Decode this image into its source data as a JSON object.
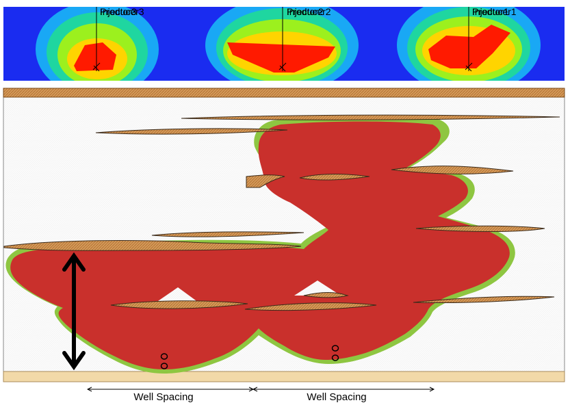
{
  "heatmap": {
    "background_color": "#1a2cf0",
    "wells": [
      {
        "label_top": "Injector3",
        "label_overlap": "Producer3"
      },
      {
        "label_top": "Injector2",
        "label_overlap": "Producer2"
      },
      {
        "label_top": "Injector1",
        "label_overlap": "Producer1"
      }
    ]
  },
  "cross_section": {
    "steam_chamber_color": "#c9302c",
    "chamber_halo_color": "#8ec641",
    "shale_color": "#d18a45",
    "cap_rock_color": "#c98c46",
    "base_rock_color": "#f2d9a8"
  },
  "spacing": {
    "left_label": "Well Spacing",
    "right_label": "Well Spacing"
  }
}
